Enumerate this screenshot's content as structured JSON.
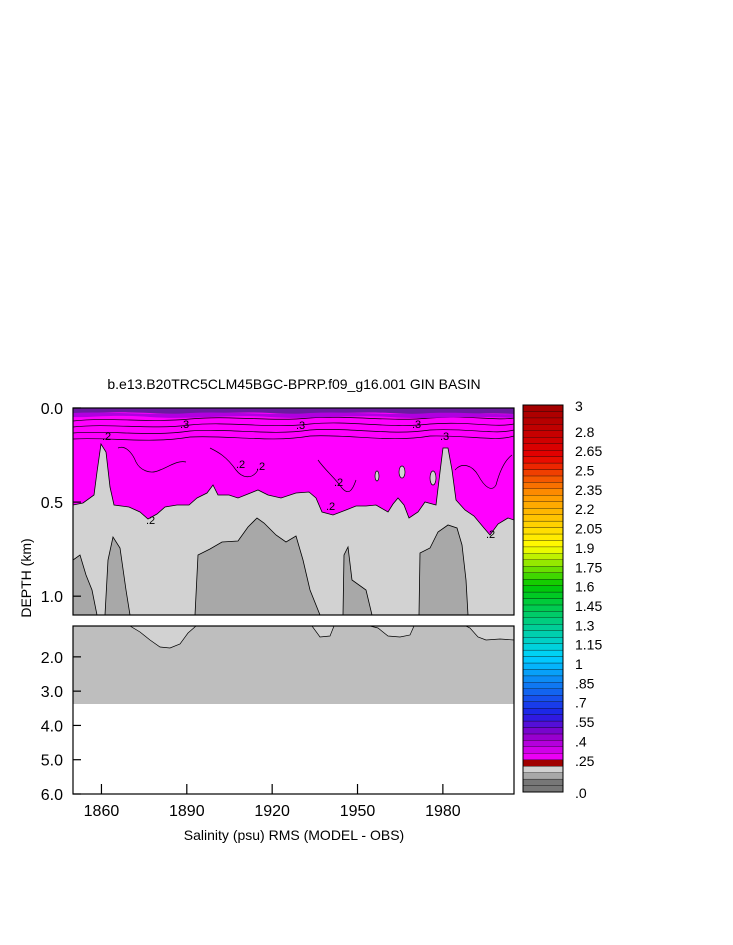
{
  "chart_data": {
    "type": "heatmap",
    "title": "b.e13.B20TRC5CLM45BGC-BPRP.f09_g16.001 GIN BASIN",
    "xlabel": "Salinity (psu) RMS (MODEL - OBS)",
    "ylabel": "DEPTH (km)",
    "x_range": [
      1850,
      2005
    ],
    "x_ticks": [
      1860,
      1890,
      1920,
      1950,
      1980
    ],
    "upper_panel": {
      "y_range": [
        0.0,
        1.1
      ],
      "y_ticks": [
        "0.0",
        "0.5",
        "1.0"
      ],
      "y_tick_values": [
        0.0,
        0.5,
        1.0
      ]
    },
    "lower_panel": {
      "y_range": [
        1.1,
        6.0
      ],
      "y_ticks": [
        "2.0",
        "3.0",
        "4.0",
        "5.0",
        "6.0"
      ],
      "y_tick_values": [
        2.0,
        3.0,
        4.0,
        5.0,
        6.0
      ]
    },
    "colorbar": {
      "range": [
        0.0,
        3.0
      ],
      "labels": [
        "3",
        "2.8",
        "2.65",
        "2.5",
        "2.35",
        "2.2",
        "2.05",
        "1.9",
        "1.75",
        "1.6",
        "1.45",
        "1.3",
        "1.15",
        "1",
        ".85",
        ".7",
        ".55",
        ".4",
        ".25",
        ".0"
      ],
      "label_values": [
        3.0,
        2.8,
        2.65,
        2.5,
        2.35,
        2.2,
        2.05,
        1.9,
        1.75,
        1.6,
        1.45,
        1.3,
        1.15,
        1.0,
        0.85,
        0.7,
        0.55,
        0.4,
        0.25,
        0.0
      ],
      "colors": {
        "low_dark": "#777777",
        "low_mid": "#a8a8a8",
        "low_light": "#d2d2d2",
        "magenta": "#ff00ff",
        "purple": "#8a00c8",
        "blue": "#1e1ee6",
        "cyan": "#00d2ff",
        "green": "#00c800",
        "yellow": "#ffff00",
        "orange": "#ff9600",
        "red": "#e60000",
        "dark_red": "#a00000"
      }
    },
    "field_colors": {
      "shallow_band": "#ff00ff",
      "upper_background": "#d2d2d2",
      "deep_patches": "#a8a8a8",
      "lower_band": "#bebebe"
    },
    "contour_labels": [
      ".2",
      ".2",
      ".2",
      ".2",
      ".2",
      ".2",
      ".2",
      ".3",
      ".3",
      ".3",
      ".3"
    ]
  }
}
